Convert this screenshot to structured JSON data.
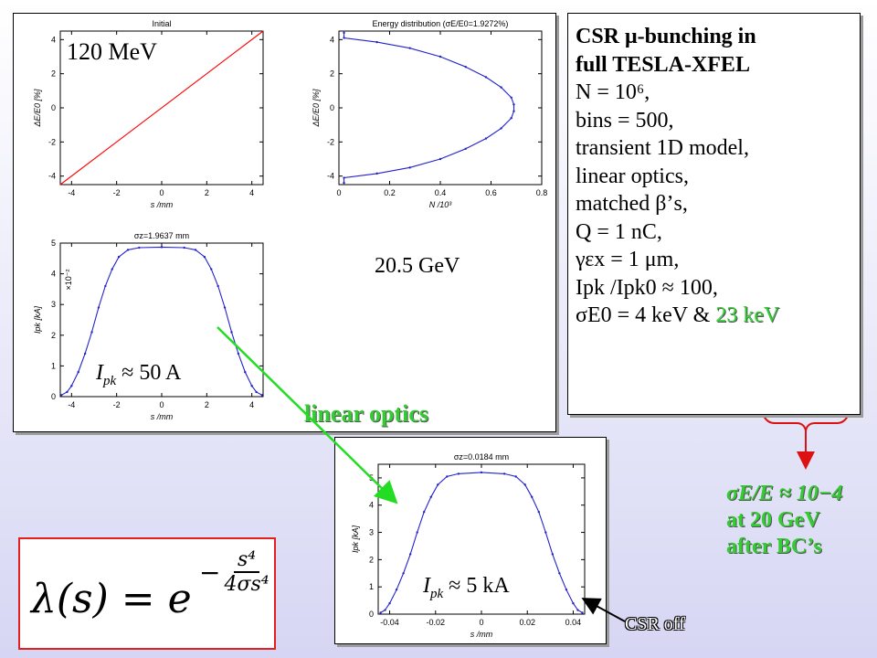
{
  "labels": {
    "energy_low": "120 MeV",
    "energy_high": "20.5 GeV",
    "ipk_50": "I_pk ≈ 50 A",
    "ipk_50_sym": "I",
    "ipk_50_sub": "pk",
    "ipk_50_rest": " ≈ 50 A",
    "linear_optics": "linear optics",
    "ipk_5_sym": "I",
    "ipk_5_sub": "pk",
    "ipk_5_rest": " ≈ 5 kA",
    "csr_off": "CSR off",
    "sigma_e_line1": "σE/E ≈ 10−4",
    "sigma_e_line2": "at 20 GeV",
    "sigma_e_line3": "after BC’s"
  },
  "infobox": {
    "line1": "CSR μ-bunching in",
    "line2": "full TESLA-XFEL",
    "line3": "N = 10⁶,",
    "line4": "bins = 500,",
    "line5": "transient 1D model,",
    "line6": "linear optics,",
    "line7": "matched β’s,",
    "line8": "Q = 1 nC,",
    "line9": "γεx = 1 μm,",
    "line10": "Ipk /Ipk0 ≈ 100,",
    "line11a": "σE0 = 4 keV & ",
    "line11b": "23 keV"
  },
  "formula": {
    "lhs": "λ(s) = e",
    "num": "s⁴",
    "den": "4σs⁴"
  },
  "colors": {
    "line_red": "#ff0000",
    "trace_blue": "#2222cc",
    "green_text": "#33cc33",
    "arrow_green": "#22dd22",
    "arrow_red": "#dd1111"
  },
  "chart_data": [
    {
      "type": "line",
      "title": "Initial",
      "xlabel": "s /mm",
      "ylabel": "ΔE/E0 [%]",
      "xlim": [
        -4.5,
        4.5
      ],
      "ylim": [
        -4.5,
        4.5
      ],
      "xticks": [
        -4,
        -2,
        0,
        2,
        4
      ],
      "yticks": [
        -4,
        -2,
        0,
        2,
        4
      ],
      "series": [
        {
          "x": [
            -4.5,
            4.5
          ],
          "y": [
            -4.5,
            4.5
          ]
        }
      ]
    },
    {
      "type": "line",
      "title": "Energy distribution (σE/E0=1.9272%)",
      "xlabel": "N /10³",
      "ylabel": "ΔE/E0 [%]",
      "xlim": [
        0,
        0.8
      ],
      "ylim": [
        -4.5,
        4.5
      ],
      "xticks": [
        0,
        0.2,
        0.4,
        0.6,
        0.8
      ],
      "yticks": [
        -4,
        -2,
        0,
        2,
        4
      ],
      "series": [
        {
          "x": [
            0.02,
            0.02,
            0.15,
            0.28,
            0.4,
            0.5,
            0.58,
            0.64,
            0.68,
            0.69,
            0.69,
            0.68,
            0.64,
            0.58,
            0.5,
            0.4,
            0.28,
            0.15,
            0.02,
            0.02
          ],
          "y": [
            -4.4,
            -4.1,
            -3.85,
            -3.5,
            -3.0,
            -2.4,
            -1.8,
            -1.2,
            -0.6,
            -0.2,
            0.2,
            0.6,
            1.2,
            1.8,
            2.4,
            3.0,
            3.5,
            3.85,
            4.1,
            4.4
          ]
        }
      ]
    },
    {
      "type": "line",
      "title": "σz=1.9637 mm",
      "xlabel": "s /mm",
      "ylabel": "Ipk [kA]",
      "yscale_note": "×10⁻²",
      "xlim": [
        -4.5,
        4.5
      ],
      "ylim": [
        0,
        5
      ],
      "xticks": [
        -4,
        -2,
        0,
        2,
        4
      ],
      "yticks": [
        0,
        1,
        2,
        3,
        4,
        5
      ],
      "series": [
        {
          "x": [
            -4.45,
            -4.2,
            -4.0,
            -3.7,
            -3.4,
            -3.1,
            -2.8,
            -2.5,
            -2.2,
            -1.9,
            -1.5,
            -1.0,
            0,
            1.0,
            1.5,
            1.9,
            2.2,
            2.5,
            2.8,
            3.1,
            3.4,
            3.7,
            4.0,
            4.2,
            4.45
          ],
          "y": [
            0.05,
            0.15,
            0.35,
            0.8,
            1.4,
            2.1,
            2.9,
            3.6,
            4.15,
            4.55,
            4.78,
            4.85,
            4.87,
            4.85,
            4.78,
            4.55,
            4.15,
            3.6,
            2.9,
            2.1,
            1.4,
            0.8,
            0.35,
            0.15,
            0.05
          ]
        }
      ]
    },
    {
      "type": "line",
      "title": "σz=0.0184 mm",
      "xlabel": "s /mm",
      "ylabel": "Ipk [kA]",
      "xlim": [
        -0.045,
        0.045
      ],
      "ylim": [
        0,
        5.5
      ],
      "xticks": [
        -0.04,
        -0.02,
        0,
        0.02,
        0.04
      ],
      "yticks": [
        0,
        1,
        2,
        3,
        4,
        5
      ],
      "series": [
        {
          "x": [
            -0.044,
            -0.042,
            -0.04,
            -0.037,
            -0.034,
            -0.031,
            -0.028,
            -0.025,
            -0.022,
            -0.019,
            -0.015,
            -0.01,
            0,
            0.01,
            0.015,
            0.019,
            0.022,
            0.025,
            0.028,
            0.031,
            0.034,
            0.037,
            0.04,
            0.042,
            0.044
          ],
          "y": [
            0.05,
            0.15,
            0.4,
            0.9,
            1.5,
            2.2,
            3.0,
            3.75,
            4.3,
            4.75,
            5.05,
            5.15,
            5.2,
            5.15,
            5.05,
            4.75,
            4.3,
            3.75,
            3.0,
            2.2,
            1.5,
            0.9,
            0.4,
            0.15,
            0.05
          ]
        }
      ]
    }
  ]
}
